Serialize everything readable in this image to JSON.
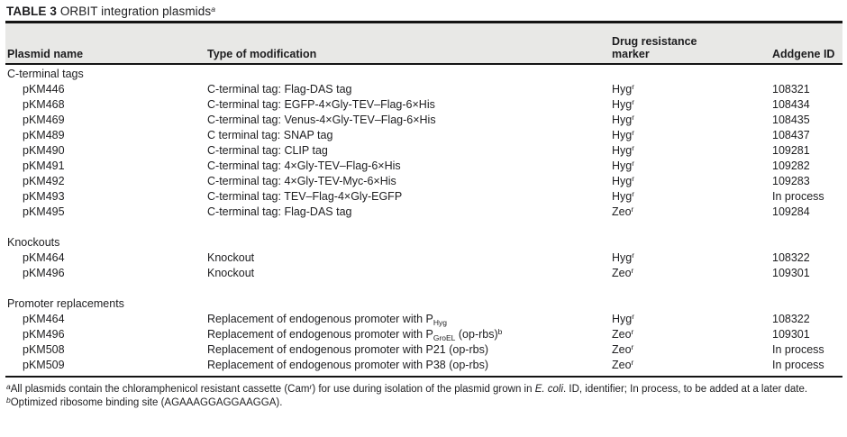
{
  "title": {
    "label": "TABLE 3",
    "caption": "ORBIT integration plasmids",
    "footnote_marker": "a"
  },
  "columns": {
    "plasmid": "Plasmid name",
    "modification": "Type of modification",
    "marker_line1": "Drug resistance",
    "marker_line2": "marker",
    "addgene": "Addgene ID"
  },
  "sections": [
    {
      "name": "C-terminal tags",
      "rows": [
        {
          "plasmid": "pKM446",
          "modification": [
            {
              "t": "text",
              "v": "C-terminal tag: Flag-DAS tag"
            }
          ],
          "marker": "Hyg",
          "marker_sup": "r",
          "addgene": "108321"
        },
        {
          "plasmid": "pKM468",
          "modification": [
            {
              "t": "text",
              "v": "C-terminal tag: EGFP-4×Gly-TEV–Flag-6×His"
            }
          ],
          "marker": "Hyg",
          "marker_sup": "r",
          "addgene": "108434"
        },
        {
          "plasmid": "pKM469",
          "modification": [
            {
              "t": "text",
              "v": "C-terminal tag: Venus-4×Gly-TEV–Flag-6×His"
            }
          ],
          "marker": "Hyg",
          "marker_sup": "r",
          "addgene": "108435"
        },
        {
          "plasmid": "pKM489",
          "modification": [
            {
              "t": "text",
              "v": "C terminal tag: SNAP tag"
            }
          ],
          "marker": "Hyg",
          "marker_sup": "r",
          "addgene": "108437"
        },
        {
          "plasmid": "pKM490",
          "modification": [
            {
              "t": "text",
              "v": "C-terminal tag: CLIP tag"
            }
          ],
          "marker": "Hyg",
          "marker_sup": "r",
          "addgene": "109281"
        },
        {
          "plasmid": "pKM491",
          "modification": [
            {
              "t": "text",
              "v": "C-terminal tag: 4×Gly-TEV–Flag-6×His"
            }
          ],
          "marker": "Hyg",
          "marker_sup": "r",
          "addgene": "109282"
        },
        {
          "plasmid": "pKM492",
          "modification": [
            {
              "t": "text",
              "v": "C-terminal tag: 4×Gly-TEV-Myc-6×His"
            }
          ],
          "marker": "Hyg",
          "marker_sup": "r",
          "addgene": "109283"
        },
        {
          "plasmid": "pKM493",
          "modification": [
            {
              "t": "text",
              "v": "C-terminal tag: TEV–Flag-4×Gly-EGFP"
            }
          ],
          "marker": "Hyg",
          "marker_sup": "r",
          "addgene": "In process"
        },
        {
          "plasmid": "pKM495",
          "modification": [
            {
              "t": "text",
              "v": "C-terminal tag: Flag-DAS tag"
            }
          ],
          "marker": "Zeo",
          "marker_sup": "r",
          "addgene": "109284"
        }
      ]
    },
    {
      "name": "Knockouts",
      "rows": [
        {
          "plasmid": "pKM464",
          "modification": [
            {
              "t": "text",
              "v": "Knockout"
            }
          ],
          "marker": "Hyg",
          "marker_sup": "r",
          "addgene": "108322"
        },
        {
          "plasmid": "pKM496",
          "modification": [
            {
              "t": "text",
              "v": "Knockout"
            }
          ],
          "marker": "Zeo",
          "marker_sup": "r",
          "addgene": "109301"
        }
      ]
    },
    {
      "name": "Promoter replacements",
      "rows": [
        {
          "plasmid": "pKM464",
          "modification": [
            {
              "t": "text",
              "v": "Replacement of endogenous promoter with P"
            },
            {
              "t": "sub",
              "v": "Hyg"
            }
          ],
          "marker": "Hyg",
          "marker_sup": "r",
          "addgene": "108322"
        },
        {
          "plasmid": "pKM496",
          "modification": [
            {
              "t": "text",
              "v": "Replacement of endogenous promoter with P"
            },
            {
              "t": "sub",
              "v": "GroEL"
            },
            {
              "t": "text",
              "v": " (op-rbs)"
            },
            {
              "t": "sup",
              "v": "b"
            }
          ],
          "marker": "Zeo",
          "marker_sup": "r",
          "addgene": "109301"
        },
        {
          "plasmid": "pKM508",
          "modification": [
            {
              "t": "text",
              "v": "Replacement of endogenous promoter with P21 (op-rbs)"
            }
          ],
          "marker": "Zeo",
          "marker_sup": "r",
          "addgene": "In process"
        },
        {
          "plasmid": "pKM509",
          "modification": [
            {
              "t": "text",
              "v": "Replacement of endogenous promoter with P38 (op-rbs)"
            }
          ],
          "marker": "Zeo",
          "marker_sup": "r",
          "addgene": "In process"
        }
      ]
    }
  ],
  "footnotes": [
    {
      "marker": "a",
      "parts": [
        {
          "t": "text",
          "v": "All plasmids contain the chloramphenicol resistant cassette (Cam"
        },
        {
          "t": "sup",
          "v": "r"
        },
        {
          "t": "text",
          "v": ") for use during isolation of the plasmid grown in "
        },
        {
          "t": "italic",
          "v": "E. coli"
        },
        {
          "t": "text",
          "v": ". ID, identifier; In process, to be added at a later date."
        }
      ]
    },
    {
      "marker": "b",
      "parts": [
        {
          "t": "text",
          "v": "Optimized ribosome binding site (AGAAAGGAGGAAGGA)."
        }
      ]
    }
  ],
  "colors": {
    "header_band": "#e8e8e6",
    "rule": "#141414",
    "text": "#1d1d1f"
  }
}
